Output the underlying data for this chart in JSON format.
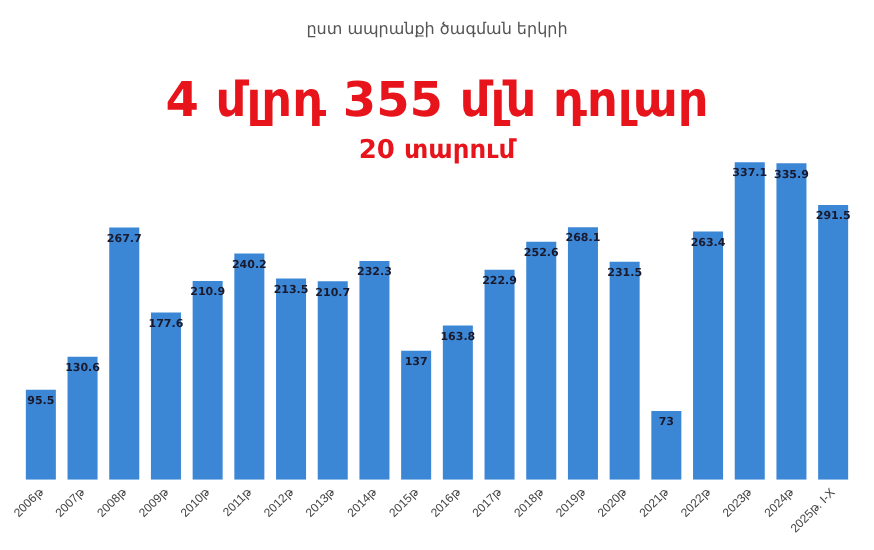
{
  "chart_data": {
    "type": "bar",
    "title": "4 մլրդ 355 մլն դոլար",
    "subtitle": "20 տարում",
    "annotations": [
      "ըստ ապրանքի ծագման երկրի"
    ],
    "categories": [
      "2006թ",
      "2007թ",
      "2008թ",
      "2009թ",
      "2010թ",
      "2011թ",
      "2012թ",
      "2013թ",
      "2014թ",
      "2015թ",
      "2016թ",
      "2017թ",
      "2018թ",
      "2019թ",
      "2020թ",
      "2021թ",
      "2022թ",
      "2023թ",
      "2024թ",
      "2025թ. I-X"
    ],
    "values": [
      95.5,
      130.6,
      267.7,
      177.6,
      210.9,
      240.2,
      213.5,
      210.7,
      232.3,
      137,
      163.8,
      222.9,
      252.6,
      268.1,
      231.5,
      73,
      263.4,
      337.1,
      335.9,
      291.5
    ],
    "color": "#3b87d6",
    "data_labels": true,
    "grid": false,
    "legend": false
  }
}
